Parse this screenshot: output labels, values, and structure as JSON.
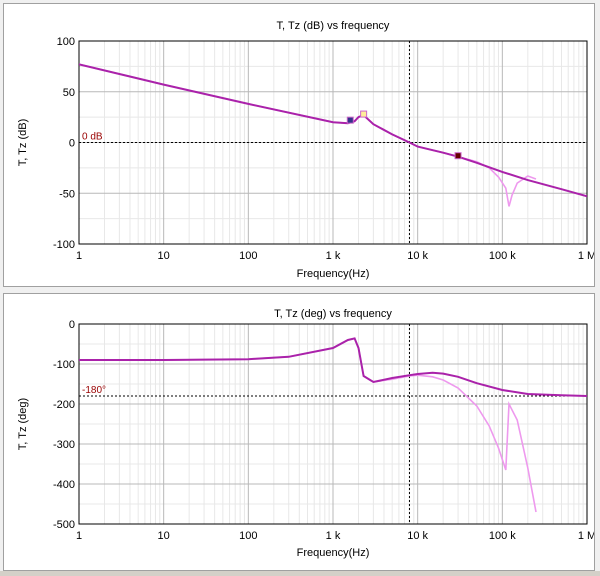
{
  "colors": {
    "series_t": "#aa22aa",
    "series_tz": "#ee99ee",
    "marker_label": "#990000",
    "grid_major": "#b8b8b8",
    "grid_minor": "#e8e8e8"
  },
  "chart_data": [
    {
      "type": "line",
      "title": "T, Tz (dB) vs frequency",
      "xlabel": "Frequency(Hz)",
      "ylabel": "T, Tz (dB)",
      "xscale": "log",
      "xlim": [
        1,
        1000000
      ],
      "ylim": [
        -100,
        100
      ],
      "x_ticks": [
        1,
        10,
        100,
        1000,
        10000,
        100000,
        1000000
      ],
      "x_tick_labels": [
        "1",
        "10",
        "100",
        "1 k",
        "10 k",
        "100 k",
        "1 M"
      ],
      "y_ticks": [
        100,
        50,
        0,
        -50,
        -100
      ],
      "y_tick_labels": [
        "100",
        "50",
        "0",
        "-50",
        "-100"
      ],
      "grid": true,
      "ref_line": {
        "value": 0,
        "label": "0 dB"
      },
      "crossover_x": 8000,
      "series": [
        {
          "x": [
            1,
            10,
            100,
            1000,
            1500,
            1800,
            2000,
            2300,
            3000,
            5000,
            8000,
            10000,
            20000,
            30000,
            50000,
            100000,
            200000,
            500000,
            1000000
          ],
          "y": [
            77,
            57,
            38,
            20,
            19,
            21,
            25,
            27,
            18,
            8,
            0,
            -4,
            -10,
            -14,
            -20,
            -29,
            -37,
            -46,
            -53
          ]
        },
        {
          "x": [
            1,
            10,
            100,
            1000,
            1500,
            1800,
            2000,
            2300,
            3000,
            5000,
            8000,
            10000,
            20000,
            30000,
            50000,
            70000,
            90000,
            110000,
            120000,
            130000,
            150000,
            200000,
            250000
          ],
          "y": [
            77,
            57,
            38,
            20,
            19,
            21,
            25,
            27,
            18,
            8,
            0,
            -4,
            -10,
            -14,
            -19,
            -25,
            -34,
            -45,
            -63,
            -52,
            -40,
            -33,
            -36
          ]
        }
      ],
      "markers": [
        {
          "x": 1600,
          "y": 22
        },
        {
          "x": 2300,
          "y": 28
        },
        {
          "x": 30000,
          "y": -13
        }
      ]
    },
    {
      "type": "line",
      "title": "T, Tz (deg) vs frequency",
      "xlabel": "Frequency(Hz)",
      "ylabel": "T, Tz (deg)",
      "xscale": "log",
      "xlim": [
        1,
        1000000
      ],
      "ylim": [
        -500,
        0
      ],
      "x_ticks": [
        1,
        10,
        100,
        1000,
        10000,
        100000,
        1000000
      ],
      "x_tick_labels": [
        "1",
        "10",
        "100",
        "1 k",
        "10 k",
        "100 k",
        "1 M"
      ],
      "y_ticks": [
        0,
        -100,
        -200,
        -300,
        -400,
        -500
      ],
      "y_tick_labels": [
        "0",
        "-100",
        "-200",
        "-300",
        "-400",
        "-500"
      ],
      "grid": true,
      "ref_line": {
        "value": -180,
        "label": "-180°"
      },
      "crossover_x": 8000,
      "series": [
        {
          "x": [
            1,
            10,
            100,
            300,
            1000,
            1500,
            1800,
            2000,
            2300,
            3000,
            5000,
            8000,
            10000,
            15000,
            20000,
            30000,
            50000,
            100000,
            200000,
            500000,
            1000000
          ],
          "y": [
            -90,
            -90,
            -88,
            -82,
            -60,
            -40,
            -36,
            -60,
            -130,
            -145,
            -135,
            -128,
            -125,
            -122,
            -124,
            -132,
            -148,
            -165,
            -175,
            -178,
            -180
          ]
        },
        {
          "x": [
            1,
            10,
            100,
            300,
            1000,
            1500,
            1800,
            2000,
            2300,
            3000,
            5000,
            8000,
            10000,
            15000,
            20000,
            30000,
            50000,
            70000,
            90000,
            110000,
            120000,
            150000,
            200000,
            250000
          ],
          "y": [
            -90,
            -90,
            -88,
            -82,
            -60,
            -40,
            -36,
            -60,
            -130,
            -145,
            -138,
            -130,
            -128,
            -132,
            -140,
            -160,
            -205,
            -255,
            -310,
            -365,
            -200,
            -240,
            -360,
            -470
          ]
        }
      ]
    }
  ]
}
